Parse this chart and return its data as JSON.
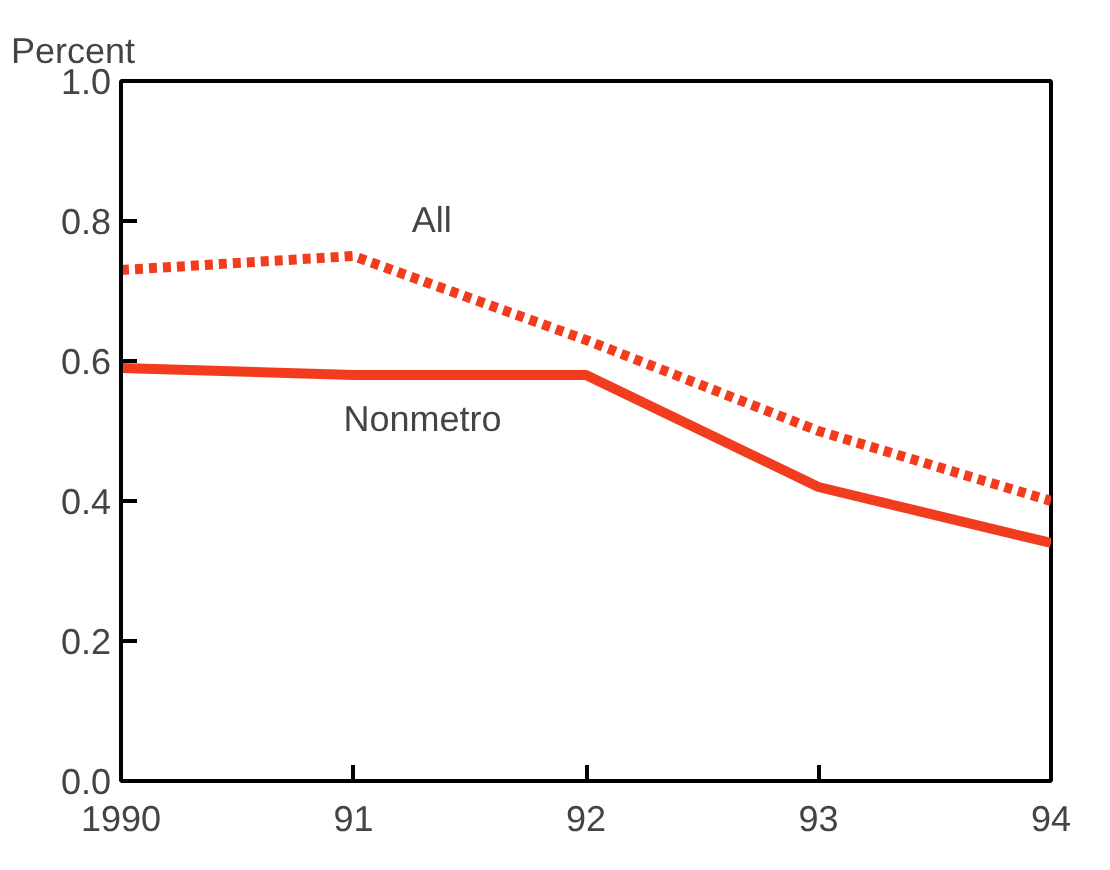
{
  "chart_data": {
    "type": "line",
    "ylabel": "Percent",
    "x": [
      1990,
      1991,
      1992,
      1993,
      1994
    ],
    "series": [
      {
        "name": "All",
        "color": "#f23c1e",
        "values": [
          0.73,
          0.75,
          0.63,
          0.5,
          0.4
        ],
        "line_style": "dashed"
      },
      {
        "name": "Nonmetro",
        "color": "#f23c1e",
        "values": [
          0.59,
          0.58,
          0.58,
          0.42,
          0.34
        ],
        "line_style": "solid"
      }
    ],
    "xlim": [
      1990,
      1994
    ],
    "ylim": [
      0,
      1
    ],
    "xticks": [
      1990,
      {
        "value": 1991,
        "label": "91"
      },
      {
        "value": 1992,
        "label": "92"
      },
      {
        "value": 1993,
        "label": "93"
      },
      {
        "value": 1994,
        "label": "94"
      }
    ],
    "yticks": [
      {
        "value": 0,
        "label": "0.0"
      },
      0.2,
      0.4,
      0.6,
      0.8,
      {
        "value": 1,
        "label": "1.0"
      }
    ],
    "grid": false,
    "legend": false,
    "marker": "none"
  }
}
